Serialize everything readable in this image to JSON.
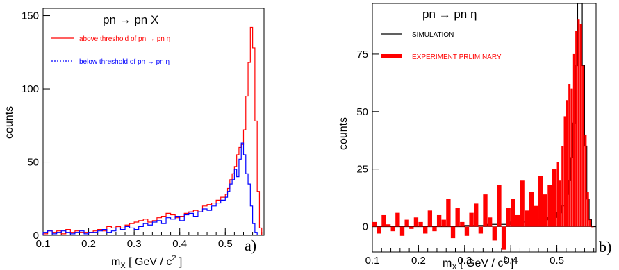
{
  "chart_data": [
    {
      "type": "line",
      "panel_label": "a)",
      "title": "pn → pn X",
      "xlabel": "m_X [ GeV / c^2 ]",
      "ylabel": "counts",
      "xlim": [
        0.1,
        0.585
      ],
      "ylim": [
        0,
        155
      ],
      "xticks": [
        "0.1",
        "0.2",
        "0.3",
        "0.4",
        "0.5"
      ],
      "xtick_values": [
        0.1,
        0.2,
        0.3,
        0.4,
        0.5
      ],
      "yticks": [
        "0",
        "50",
        "100",
        "150"
      ],
      "ytick_values": [
        0,
        50,
        100,
        150
      ],
      "legend_position": "top-left",
      "series": [
        {
          "name": "above threshold of pn → pn η",
          "color": "#ff0000",
          "style": "solid",
          "x": [
            0.1,
            0.11,
            0.12,
            0.13,
            0.14,
            0.15,
            0.16,
            0.17,
            0.18,
            0.19,
            0.2,
            0.21,
            0.22,
            0.23,
            0.24,
            0.25,
            0.26,
            0.27,
            0.28,
            0.29,
            0.3,
            0.31,
            0.32,
            0.33,
            0.34,
            0.35,
            0.36,
            0.37,
            0.38,
            0.39,
            0.4,
            0.41,
            0.42,
            0.43,
            0.44,
            0.45,
            0.46,
            0.47,
            0.48,
            0.49,
            0.5,
            0.505,
            0.51,
            0.515,
            0.52,
            0.525,
            0.53,
            0.535,
            0.54,
            0.545,
            0.55,
            0.555,
            0.56,
            0.565,
            0.57,
            0.575
          ],
          "y": [
            1,
            3,
            2,
            3,
            1,
            4,
            2,
            3,
            2,
            2,
            2,
            3,
            4,
            3,
            6,
            5,
            6,
            5,
            7,
            8,
            9,
            10,
            11,
            9,
            10,
            12,
            13,
            15,
            14,
            12,
            13,
            15,
            16,
            17,
            16,
            20,
            21,
            22,
            24,
            26,
            28,
            32,
            38,
            42,
            47,
            55,
            60,
            62,
            72,
            95,
            118,
            142,
            128,
            78,
            30,
            5
          ]
        },
        {
          "name": "below threshold of pn → pn η",
          "color": "#0000ff",
          "style": "dotted",
          "x": [
            0.1,
            0.11,
            0.12,
            0.13,
            0.14,
            0.15,
            0.16,
            0.17,
            0.18,
            0.19,
            0.2,
            0.21,
            0.22,
            0.23,
            0.24,
            0.25,
            0.26,
            0.27,
            0.28,
            0.29,
            0.3,
            0.31,
            0.32,
            0.33,
            0.34,
            0.35,
            0.36,
            0.37,
            0.38,
            0.39,
            0.4,
            0.41,
            0.42,
            0.43,
            0.44,
            0.45,
            0.46,
            0.47,
            0.48,
            0.49,
            0.5,
            0.505,
            0.51,
            0.515,
            0.52,
            0.525,
            0.53,
            0.535,
            0.54,
            0.545,
            0.55,
            0.555,
            0.56,
            0.565
          ],
          "y": [
            2,
            3,
            1,
            2,
            3,
            2,
            1,
            2,
            3,
            1,
            2,
            2,
            3,
            4,
            2,
            3,
            5,
            4,
            6,
            5,
            4,
            6,
            8,
            7,
            9,
            10,
            8,
            12,
            11,
            13,
            10,
            14,
            15,
            13,
            16,
            18,
            17,
            20,
            22,
            24,
            26,
            30,
            35,
            38,
            45,
            40,
            52,
            63,
            55,
            42,
            35,
            20,
            8,
            2
          ]
        }
      ]
    },
    {
      "type": "bar",
      "panel_label": "b)",
      "title": "pn → pn η",
      "xlabel": "m_X [ GeV / c^2 ]",
      "ylabel": "counts",
      "xlim": [
        0.1,
        0.585
      ],
      "ylim": [
        -11,
        97
      ],
      "xticks": [
        "0.1",
        "0.2",
        "0.3",
        "0.4",
        "0.5"
      ],
      "xtick_values": [
        0.1,
        0.2,
        0.3,
        0.4,
        0.5
      ],
      "yticks": [
        "0",
        "25",
        "50",
        "75"
      ],
      "ytick_values": [
        0,
        25,
        50,
        75
      ],
      "legend_position": "top-left",
      "series": [
        {
          "name": "SIMULATION",
          "color": "#000000",
          "style": "line",
          "x": [
            0.1,
            0.15,
            0.2,
            0.25,
            0.3,
            0.35,
            0.4,
            0.45,
            0.48,
            0.5,
            0.51,
            0.52,
            0.525,
            0.53,
            0.535,
            0.54,
            0.545,
            0.55,
            0.555,
            0.56,
            0.565,
            0.57,
            0.575,
            0.58
          ],
          "y": [
            0,
            0,
            0,
            0,
            0.5,
            1,
            2,
            3,
            4,
            6,
            9,
            14,
            20,
            30,
            45,
            70,
            97,
            97,
            70,
            35,
            12,
            3,
            0,
            0
          ]
        },
        {
          "name": "EXPERIMENT PRLIMINARY",
          "color": "#ff0000",
          "style": "filled",
          "x": [
            0.1,
            0.11,
            0.12,
            0.13,
            0.14,
            0.15,
            0.16,
            0.17,
            0.18,
            0.19,
            0.2,
            0.21,
            0.22,
            0.23,
            0.24,
            0.25,
            0.26,
            0.27,
            0.28,
            0.29,
            0.3,
            0.31,
            0.32,
            0.33,
            0.34,
            0.35,
            0.36,
            0.37,
            0.38,
            0.39,
            0.4,
            0.41,
            0.42,
            0.43,
            0.44,
            0.45,
            0.46,
            0.47,
            0.48,
            0.49,
            0.5,
            0.505,
            0.51,
            0.515,
            0.52,
            0.525,
            0.53,
            0.535,
            0.54,
            0.545,
            0.55,
            0.555,
            0.56,
            0.565,
            0.57,
            0.575
          ],
          "y": [
            2,
            -3,
            5,
            1,
            -2,
            6,
            -4,
            3,
            -1,
            4,
            2,
            -3,
            7,
            -2,
            5,
            3,
            12,
            -5,
            8,
            2,
            -4,
            6,
            10,
            -3,
            14,
            4,
            -6,
            18,
            -10,
            8,
            12,
            5,
            20,
            7,
            15,
            9,
            22,
            14,
            18,
            25,
            28,
            20,
            35,
            48,
            55,
            62,
            60,
            75,
            85,
            90,
            88,
            70,
            40,
            15,
            3,
            0
          ]
        }
      ]
    }
  ]
}
